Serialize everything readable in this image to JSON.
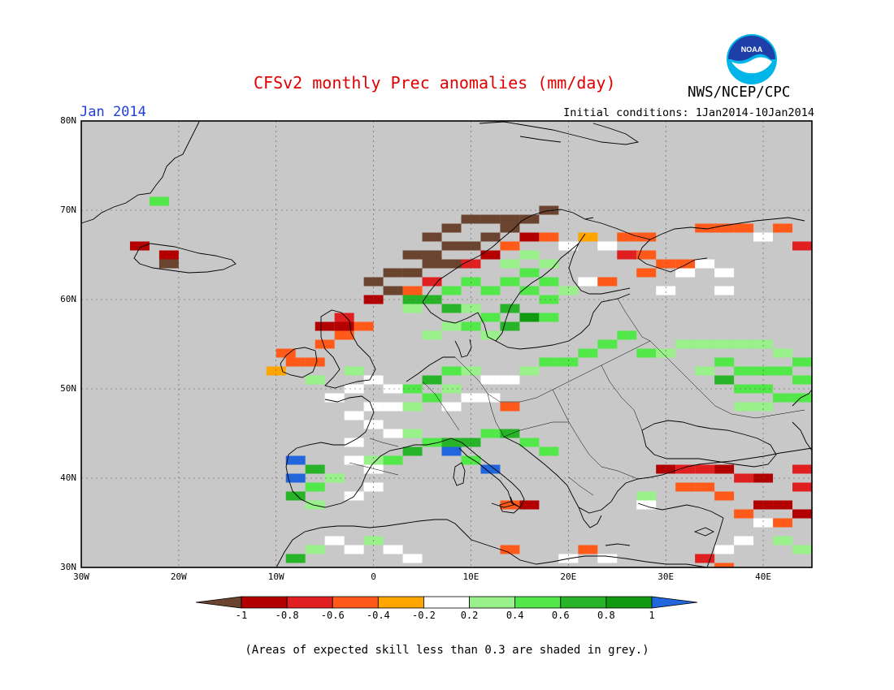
{
  "header": {
    "title": "CFSv2 monthly Prec anomalies (mm/day)",
    "month": "Jan 2014",
    "initial_conditions": "Initial conditions: 1Jan2014-10Jan2014",
    "agency": "NWS/NCEP/CPC",
    "logo_text": "NOAA"
  },
  "axes": {
    "lat_ticks": [
      "30N",
      "40N",
      "50N",
      "60N",
      "70N",
      "80N"
    ],
    "lon_ticks": [
      "30W",
      "20W",
      "10W",
      "0",
      "10E",
      "20E",
      "30E",
      "40E"
    ]
  },
  "colorbar": {
    "labels": [
      "-1",
      "-0.8",
      "-0.6",
      "-0.4",
      "-0.2",
      "0.2",
      "0.4",
      "0.6",
      "0.8",
      "1"
    ],
    "colors": [
      "#6b4430",
      "#b30000",
      "#e02020",
      "#ff5a1a",
      "#ffa500",
      "#ffffff",
      "#9af08a",
      "#52e84a",
      "#28b428",
      "#0f9a0f",
      "#2266dd"
    ]
  },
  "map_data": {
    "extent": {
      "lon_min": -30,
      "lon_max": 45,
      "lat_min": 30,
      "lat_max": 80
    },
    "mask_color": "#c8c8c8",
    "cells": [
      {
        "lon": -22,
        "lat": 71,
        "v": 0.5
      },
      {
        "lon": -24,
        "lat": 66,
        "v": -0.8
      },
      {
        "lon": -21,
        "lat": 65,
        "v": -0.8
      },
      {
        "lon": -21,
        "lat": 64,
        "v": -1.1
      },
      {
        "lon": 8,
        "lat": 68,
        "v": -1.1
      },
      {
        "lon": 10,
        "lat": 69,
        "v": -1.1
      },
      {
        "lon": 12,
        "lat": 69,
        "v": -1.1
      },
      {
        "lon": 14,
        "lat": 69,
        "v": -1.1
      },
      {
        "lon": 16,
        "lat": 69,
        "v": -1.1
      },
      {
        "lon": 18,
        "lat": 70,
        "v": -1.1
      },
      {
        "lon": 6,
        "lat": 67,
        "v": -1.1
      },
      {
        "lon": 12,
        "lat": 67,
        "v": -1.1
      },
      {
        "lon": 14,
        "lat": 68,
        "v": -1.1
      },
      {
        "lon": 4,
        "lat": 65,
        "v": -1.1
      },
      {
        "lon": 6,
        "lat": 65,
        "v": -1.1
      },
      {
        "lon": 8,
        "lat": 66,
        "v": -1.1
      },
      {
        "lon": 10,
        "lat": 66,
        "v": -1.1
      },
      {
        "lon": 2,
        "lat": 63,
        "v": -1.1
      },
      {
        "lon": 4,
        "lat": 63,
        "v": -1.1
      },
      {
        "lon": 6,
        "lat": 64,
        "v": -1.1
      },
      {
        "lon": 8,
        "lat": 64,
        "v": -1.1
      },
      {
        "lon": 0,
        "lat": 62,
        "v": -1.1
      },
      {
        "lon": 2,
        "lat": 61,
        "v": -1.1
      },
      {
        "lon": 0,
        "lat": 60,
        "v": -0.8
      },
      {
        "lon": 16,
        "lat": 67,
        "v": -0.8
      },
      {
        "lon": 12,
        "lat": 65,
        "v": -0.8
      },
      {
        "lon": 10,
        "lat": 64,
        "v": -0.6
      },
      {
        "lon": 14,
        "lat": 66,
        "v": -0.4
      },
      {
        "lon": 18,
        "lat": 67,
        "v": -0.4
      },
      {
        "lon": 14,
        "lat": 64,
        "v": 0.3
      },
      {
        "lon": 16,
        "lat": 65,
        "v": 0.3
      },
      {
        "lon": 18,
        "lat": 64,
        "v": 0.3
      },
      {
        "lon": 16,
        "lat": 63,
        "v": 0.5
      },
      {
        "lon": 18,
        "lat": 62,
        "v": 0.5
      },
      {
        "lon": 14,
        "lat": 62,
        "v": 0.5
      },
      {
        "lon": 10,
        "lat": 62,
        "v": 0.5
      },
      {
        "lon": 8,
        "lat": 61,
        "v": 0.5
      },
      {
        "lon": 12,
        "lat": 61,
        "v": 0.5
      },
      {
        "lon": 16,
        "lat": 61,
        "v": 0.5
      },
      {
        "lon": 18,
        "lat": 60,
        "v": 0.5
      },
      {
        "lon": 20,
        "lat": 61,
        "v": 0.3
      },
      {
        "lon": 4,
        "lat": 60,
        "v": 0.7
      },
      {
        "lon": 6,
        "lat": 60,
        "v": 0.7
      },
      {
        "lon": 8,
        "lat": 59,
        "v": 0.7
      },
      {
        "lon": 14,
        "lat": 59,
        "v": 0.7
      },
      {
        "lon": 16,
        "lat": 58,
        "v": 0.9
      },
      {
        "lon": 14,
        "lat": 57,
        "v": 0.7
      },
      {
        "lon": 4,
        "lat": 59,
        "v": 0.3
      },
      {
        "lon": 10,
        "lat": 59,
        "v": 0.3
      },
      {
        "lon": 12,
        "lat": 58,
        "v": 0.5
      },
      {
        "lon": 10,
        "lat": 57,
        "v": 0.5
      },
      {
        "lon": 8,
        "lat": 57,
        "v": 0.3
      },
      {
        "lon": 6,
        "lat": 56,
        "v": 0.3
      },
      {
        "lon": 12,
        "lat": 56,
        "v": 0.3
      },
      {
        "lon": 18,
        "lat": 58,
        "v": 0.5
      },
      {
        "lon": 4,
        "lat": 61,
        "v": -0.4
      },
      {
        "lon": 6,
        "lat": 62,
        "v": -0.6
      },
      {
        "lon": 22,
        "lat": 67,
        "v": -0.2
      },
      {
        "lon": 26,
        "lat": 67,
        "v": -0.4
      },
      {
        "lon": 28,
        "lat": 67,
        "v": -0.4
      },
      {
        "lon": 20,
        "lat": 66,
        "v": 0.1
      },
      {
        "lon": 24,
        "lat": 66,
        "v": 0.1
      },
      {
        "lon": 22,
        "lat": 62,
        "v": 0.1
      },
      {
        "lon": 26,
        "lat": 65,
        "v": -0.6
      },
      {
        "lon": 28,
        "lat": 65,
        "v": -0.4
      },
      {
        "lon": 30,
        "lat": 64,
        "v": -0.4
      },
      {
        "lon": 32,
        "lat": 64,
        "v": -0.4
      },
      {
        "lon": 28,
        "lat": 63,
        "v": -0.4
      },
      {
        "lon": 24,
        "lat": 62,
        "v": -0.4
      },
      {
        "lon": 32,
        "lat": 63,
        "v": 0.1
      },
      {
        "lon": 34,
        "lat": 64,
        "v": 0.1
      },
      {
        "lon": 36,
        "lat": 63,
        "v": 0.1
      },
      {
        "lon": 36,
        "lat": 61,
        "v": 0.1
      },
      {
        "lon": 30,
        "lat": 61,
        "v": 0.1
      },
      {
        "lon": 34,
        "lat": 68,
        "v": -0.4
      },
      {
        "lon": 36,
        "lat": 68,
        "v": -0.4
      },
      {
        "lon": 38,
        "lat": 68,
        "v": -0.4
      },
      {
        "lon": 40,
        "lat": 67,
        "v": 0.1
      },
      {
        "lon": 42,
        "lat": 68,
        "v": -0.4
      },
      {
        "lon": 44,
        "lat": 66,
        "v": -0.6
      },
      {
        "lon": -3,
        "lat": 58,
        "v": -0.6
      },
      {
        "lon": -5,
        "lat": 57,
        "v": -0.8
      },
      {
        "lon": -3,
        "lat": 57,
        "v": -0.8
      },
      {
        "lon": -1,
        "lat": 57,
        "v": -0.4
      },
      {
        "lon": -3,
        "lat": 56,
        "v": -0.4
      },
      {
        "lon": -5,
        "lat": 55,
        "v": -0.4
      },
      {
        "lon": -9,
        "lat": 54,
        "v": -0.4
      },
      {
        "lon": -8,
        "lat": 53,
        "v": -0.4
      },
      {
        "lon": -6,
        "lat": 53,
        "v": -0.4
      },
      {
        "lon": -10,
        "lat": 52,
        "v": -0.2
      },
      {
        "lon": -6,
        "lat": 51,
        "v": 0.3
      },
      {
        "lon": -2,
        "lat": 52,
        "v": 0.3
      },
      {
        "lon": 0,
        "lat": 51,
        "v": 0.1
      },
      {
        "lon": -2,
        "lat": 50,
        "v": 0.1
      },
      {
        "lon": -4,
        "lat": 49,
        "v": 0.1
      },
      {
        "lon": 2,
        "lat": 50,
        "v": 0.1
      },
      {
        "lon": 2,
        "lat": 48,
        "v": 0.1
      },
      {
        "lon": 4,
        "lat": 48,
        "v": 0.3
      },
      {
        "lon": 6,
        "lat": 49,
        "v": 0.5
      },
      {
        "lon": 4,
        "lat": 50,
        "v": 0.5
      },
      {
        "lon": 6,
        "lat": 51,
        "v": 0.7
      },
      {
        "lon": 8,
        "lat": 52,
        "v": 0.5
      },
      {
        "lon": 10,
        "lat": 52,
        "v": 0.3
      },
      {
        "lon": 8,
        "lat": 50,
        "v": 0.3
      },
      {
        "lon": 12,
        "lat": 51,
        "v": 0.1
      },
      {
        "lon": 14,
        "lat": 51,
        "v": 0.1
      },
      {
        "lon": 16,
        "lat": 52,
        "v": 0.3
      },
      {
        "lon": 18,
        "lat": 53,
        "v": 0.5
      },
      {
        "lon": 20,
        "lat": 53,
        "v": 0.5
      },
      {
        "lon": 22,
        "lat": 54,
        "v": 0.5
      },
      {
        "lon": 24,
        "lat": 55,
        "v": 0.5
      },
      {
        "lon": 26,
        "lat": 56,
        "v": 0.5
      },
      {
        "lon": 28,
        "lat": 54,
        "v": 0.5
      },
      {
        "lon": 30,
        "lat": 54,
        "v": 0.3
      },
      {
        "lon": 32,
        "lat": 55,
        "v": 0.3
      },
      {
        "lon": 34,
        "lat": 55,
        "v": 0.3
      },
      {
        "lon": 36,
        "lat": 55,
        "v": 0.3
      },
      {
        "lon": 38,
        "lat": 55,
        "v": 0.3
      },
      {
        "lon": 40,
        "lat": 55,
        "v": 0.3
      },
      {
        "lon": 42,
        "lat": 54,
        "v": 0.3
      },
      {
        "lon": 36,
        "lat": 53,
        "v": 0.5
      },
      {
        "lon": 38,
        "lat": 52,
        "v": 0.5
      },
      {
        "lon": 40,
        "lat": 52,
        "v": 0.5
      },
      {
        "lon": 42,
        "lat": 52,
        "v": 0.5
      },
      {
        "lon": 44,
        "lat": 53,
        "v": 0.5
      },
      {
        "lon": 44,
        "lat": 51,
        "v": 0.5
      },
      {
        "lon": 40,
        "lat": 50,
        "v": 0.5
      },
      {
        "lon": 42,
        "lat": 49,
        "v": 0.5
      },
      {
        "lon": 44,
        "lat": 49,
        "v": 0.5
      },
      {
        "lon": 38,
        "lat": 50,
        "v": 0.5
      },
      {
        "lon": 36,
        "lat": 51,
        "v": 0.7
      },
      {
        "lon": 34,
        "lat": 52,
        "v": 0.3
      },
      {
        "lon": 40,
        "lat": 48,
        "v": 0.3
      },
      {
        "lon": 38,
        "lat": 48,
        "v": 0.3
      },
      {
        "lon": 10,
        "lat": 49,
        "v": 0.1
      },
      {
        "lon": 12,
        "lat": 49,
        "v": 0.1
      },
      {
        "lon": 14,
        "lat": 48,
        "v": -0.4
      },
      {
        "lon": 8,
        "lat": 48,
        "v": 0.1
      },
      {
        "lon": 0,
        "lat": 48,
        "v": 0.1
      },
      {
        "lon": -2,
        "lat": 47,
        "v": 0.1
      },
      {
        "lon": 0,
        "lat": 46,
        "v": 0.1
      },
      {
        "lon": 2,
        "lat": 45,
        "v": 0.1
      },
      {
        "lon": 4,
        "lat": 45,
        "v": 0.3
      },
      {
        "lon": 6,
        "lat": 44,
        "v": 0.5
      },
      {
        "lon": 8,
        "lat": 44,
        "v": 0.7
      },
      {
        "lon": 10,
        "lat": 44,
        "v": 0.7
      },
      {
        "lon": 12,
        "lat": 45,
        "v": 0.5
      },
      {
        "lon": 14,
        "lat": 45,
        "v": 0.7
      },
      {
        "lon": 16,
        "lat": 44,
        "v": 0.5
      },
      {
        "lon": 18,
        "lat": 43,
        "v": 0.5
      },
      {
        "lon": 8,
        "lat": 43,
        "v": 1.1
      },
      {
        "lon": 10,
        "lat": 42,
        "v": 0.5
      },
      {
        "lon": 12,
        "lat": 41,
        "v": 1.1
      },
      {
        "lon": 4,
        "lat": 43,
        "v": 0.7
      },
      {
        "lon": 2,
        "lat": 42,
        "v": 0.5
      },
      {
        "lon": 0,
        "lat": 42,
        "v": 0.3
      },
      {
        "lon": -2,
        "lat": 44,
        "v": 0.1
      },
      {
        "lon": -2,
        "lat": 42,
        "v": 0.1
      },
      {
        "lon": -8,
        "lat": 42,
        "v": 1.1
      },
      {
        "lon": -8,
        "lat": 40,
        "v": 1.1
      },
      {
        "lon": -6,
        "lat": 41,
        "v": 0.7
      },
      {
        "lon": -6,
        "lat": 39,
        "v": 0.5
      },
      {
        "lon": -4,
        "lat": 40,
        "v": 0.3
      },
      {
        "lon": -8,
        "lat": 38,
        "v": 0.7
      },
      {
        "lon": -6,
        "lat": 37,
        "v": 0.3
      },
      {
        "lon": -2,
        "lat": 38,
        "v": 0.1
      },
      {
        "lon": 0,
        "lat": 39,
        "v": 0.1
      },
      {
        "lon": 0,
        "lat": 41,
        "v": 0.1
      },
      {
        "lon": -8,
        "lat": 31,
        "v": 0.7
      },
      {
        "lon": -6,
        "lat": 32,
        "v": 0.3
      },
      {
        "lon": -4,
        "lat": 33,
        "v": 0.1
      },
      {
        "lon": -2,
        "lat": 32,
        "v": 0.1
      },
      {
        "lon": 2,
        "lat": 32,
        "v": 0.1
      },
      {
        "lon": 4,
        "lat": 31,
        "v": 0.1
      },
      {
        "lon": 0,
        "lat": 33,
        "v": 0.3
      },
      {
        "lon": 14,
        "lat": 37,
        "v": -0.4
      },
      {
        "lon": 16,
        "lat": 37,
        "v": -0.8
      },
      {
        "lon": 14,
        "lat": 32,
        "v": -0.4
      },
      {
        "lon": 22,
        "lat": 32,
        "v": -0.4
      },
      {
        "lon": 20,
        "lat": 31,
        "v": 0.1
      },
      {
        "lon": 24,
        "lat": 31,
        "v": 0.1
      },
      {
        "lon": 28,
        "lat": 38,
        "v": 0.3
      },
      {
        "lon": 28,
        "lat": 37,
        "v": 0.1
      },
      {
        "lon": 30,
        "lat": 41,
        "v": -0.8
      },
      {
        "lon": 32,
        "lat": 41,
        "v": -0.6
      },
      {
        "lon": 34,
        "lat": 41,
        "v": -0.6
      },
      {
        "lon": 36,
        "lat": 41,
        "v": -0.8
      },
      {
        "lon": 38,
        "lat": 40,
        "v": -0.6
      },
      {
        "lon": 40,
        "lat": 40,
        "v": -0.8
      },
      {
        "lon": 32,
        "lat": 39,
        "v": -0.4
      },
      {
        "lon": 34,
        "lat": 39,
        "v": -0.4
      },
      {
        "lon": 36,
        "lat": 38,
        "v": -0.4
      },
      {
        "lon": 44,
        "lat": 41,
        "v": -0.6
      },
      {
        "lon": 44,
        "lat": 39,
        "v": -0.6
      },
      {
        "lon": 42,
        "lat": 37,
        "v": -0.8
      },
      {
        "lon": 40,
        "lat": 37,
        "v": -0.8
      },
      {
        "lon": 38,
        "lat": 36,
        "v": -0.4
      },
      {
        "lon": 44,
        "lat": 36,
        "v": -0.8
      },
      {
        "lon": 42,
        "lat": 35,
        "v": -0.4
      },
      {
        "lon": 40,
        "lat": 35,
        "v": 0.1
      },
      {
        "lon": 38,
        "lat": 33,
        "v": 0.1
      },
      {
        "lon": 42,
        "lat": 33,
        "v": 0.3
      },
      {
        "lon": 36,
        "lat": 32,
        "v": 0.1
      },
      {
        "lon": 44,
        "lat": 32,
        "v": 0.3
      },
      {
        "lon": 34,
        "lat": 31,
        "v": -0.6
      },
      {
        "lon": 36,
        "lat": 30,
        "v": -0.4
      }
    ]
  },
  "footnote": "(Areas of expected skill less than 0.3 are shaded in grey.)"
}
